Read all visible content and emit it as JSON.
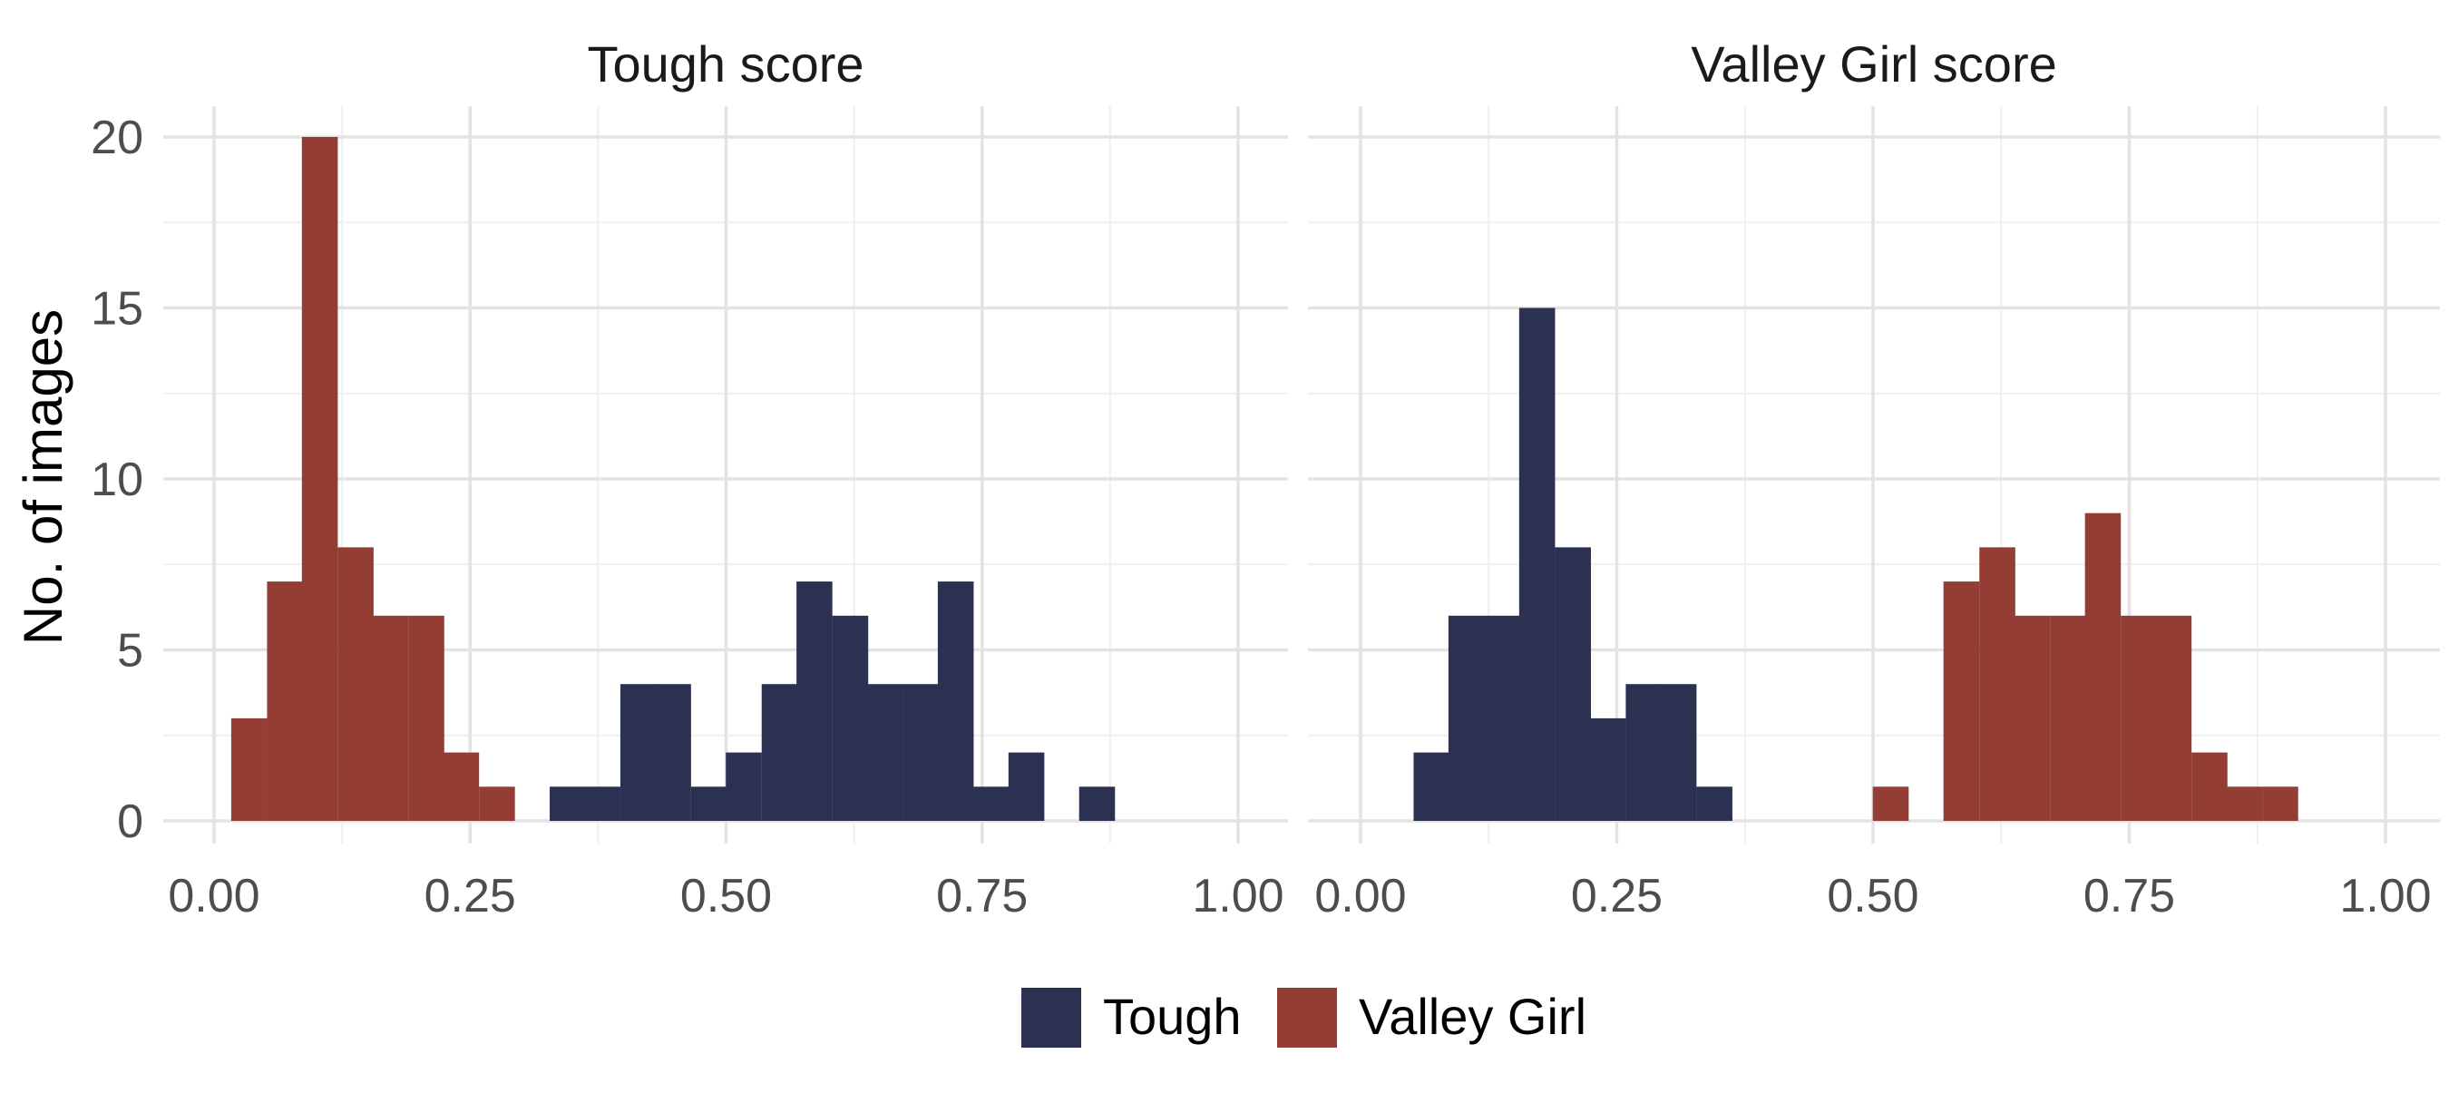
{
  "chart_data": {
    "type": "bar",
    "ylabel": "No. of images",
    "ylim": [
      0,
      20
    ],
    "yticks": [
      "0",
      "5",
      "10",
      "15",
      "20"
    ],
    "xticks": [
      "0.00",
      "0.25",
      "0.50",
      "0.75",
      "1.00"
    ],
    "xlim": [
      0,
      1
    ],
    "bin_width": 0.0345,
    "grid": true,
    "legend_position": "bottom",
    "colors": {
      "Tough": "#2C3152",
      "Valley Girl": "#943D34"
    },
    "legend": [
      {
        "key": "Tough",
        "label": "Tough"
      },
      {
        "key": "Valley Girl",
        "label": "Valley Girl"
      }
    ],
    "panels": [
      {
        "title": "Tough score",
        "series": [
          {
            "name": "Valley Girl",
            "x": [
              0.034,
              0.069,
              0.103,
              0.138,
              0.172,
              0.207,
              0.241,
              0.276
            ],
            "values": [
              3,
              7,
              20,
              8,
              6,
              6,
              2,
              1
            ]
          },
          {
            "name": "Tough",
            "x": [
              0.345,
              0.379,
              0.414,
              0.448,
              0.483,
              0.517,
              0.552,
              0.586,
              0.621,
              0.655,
              0.69,
              0.724,
              0.759,
              0.793,
              0.862
            ],
            "values": [
              1,
              1,
              4,
              4,
              1,
              2,
              4,
              7,
              6,
              4,
              4,
              7,
              1,
              2,
              1
            ]
          }
        ]
      },
      {
        "title": "Valley Girl score",
        "series": [
          {
            "name": "Tough",
            "x": [
              0.069,
              0.103,
              0.138,
              0.172,
              0.207,
              0.241,
              0.276,
              0.31,
              0.345
            ],
            "values": [
              2,
              6,
              6,
              15,
              8,
              3,
              4,
              4,
              1
            ]
          },
          {
            "name": "Valley Girl",
            "x": [
              0.517,
              0.586,
              0.621,
              0.655,
              0.69,
              0.724,
              0.759,
              0.793,
              0.828,
              0.862,
              0.897
            ],
            "values": [
              1,
              7,
              8,
              6,
              6,
              9,
              6,
              6,
              2,
              1,
              1
            ]
          }
        ]
      }
    ]
  }
}
